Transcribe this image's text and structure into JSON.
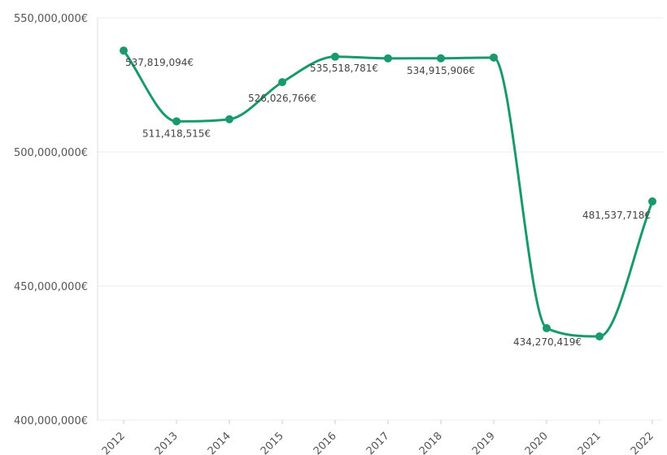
{
  "chart_data": {
    "type": "line",
    "title": "",
    "xlabel": "",
    "ylabel": "",
    "ylim": [
      400000000,
      550000000
    ],
    "yticks": [
      {
        "value": 400000000,
        "label": "400,000,000€"
      },
      {
        "value": 450000000,
        "label": "450,000,000€"
      },
      {
        "value": 500000000,
        "label": "500,000,000€"
      },
      {
        "value": 550000000,
        "label": "550,000,000€"
      }
    ],
    "x": [
      "2012",
      "2013",
      "2014",
      "2015",
      "2016",
      "2017",
      "2018",
      "2019",
      "2020",
      "2021",
      "2022"
    ],
    "series": [
      {
        "color": "#1a9a6c",
        "values": [
          537819094,
          511418515,
          512200000,
          526026766,
          535518781,
          534900000,
          534915906,
          535200000,
          434270419,
          431200000,
          481537718
        ],
        "data_labels": [
          "537,819,094€",
          "511,418,515€",
          "",
          "526,026,766€",
          "535,518,781€",
          "",
          "534,915,906€",
          "",
          "434,270,419€",
          "",
          "481,537,718€"
        ]
      }
    ],
    "grid": true,
    "legend": "none"
  }
}
